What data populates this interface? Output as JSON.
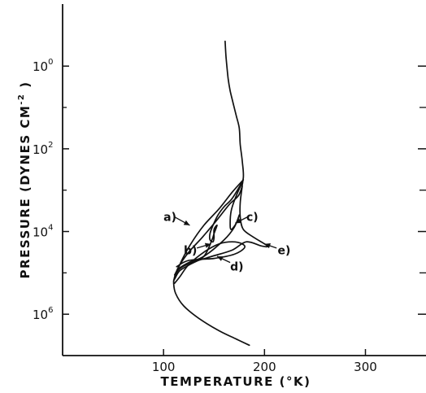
{
  "chart_data": {
    "type": "line",
    "xlabel": "TEMPERATURE (°K)",
    "ylabel_main": "PRESSURE (DYNES CM",
    "ylabel_sup": "-2",
    "ylabel_tail": " )",
    "xlim": [
      0,
      360
    ],
    "ylim_log10": [
      -1.5,
      7
    ],
    "y_scale": "log",
    "x_ticks": [
      {
        "value": 100,
        "label": "100"
      },
      {
        "value": 200,
        "label": "200"
      },
      {
        "value": 300,
        "label": "300"
      }
    ],
    "y_ticks": [
      {
        "exp": 0,
        "base": "10",
        "sup": "0"
      },
      {
        "exp": 2,
        "base": "10",
        "sup": "2"
      },
      {
        "exp": 4,
        "base": "10",
        "sup": "4"
      },
      {
        "exp": 6,
        "base": "10",
        "sup": "6"
      }
    ],
    "y_minor_ticks": [
      1,
      3,
      5
    ],
    "grid": false,
    "series": [
      {
        "name": "main",
        "points": [
          [
            161,
            -0.6
          ],
          [
            162,
            -0.2
          ],
          [
            164,
            0.3
          ],
          [
            166,
            0.6
          ],
          [
            169,
            0.9
          ],
          [
            172,
            1.2
          ],
          [
            175,
            1.5
          ],
          [
            176,
            1.9
          ],
          [
            178,
            2.3
          ],
          [
            179,
            2.7
          ],
          [
            175,
            3.1
          ],
          [
            165,
            3.35
          ],
          [
            152,
            3.75
          ],
          [
            138,
            4.15
          ],
          [
            125,
            4.5
          ],
          [
            115,
            4.85
          ],
          [
            111,
            5.1
          ],
          [
            110,
            5.25
          ],
          [
            112,
            5.5
          ],
          [
            120,
            5.8
          ],
          [
            135,
            6.1
          ],
          [
            155,
            6.4
          ],
          [
            172,
            6.6
          ],
          [
            185,
            6.75
          ]
        ]
      },
      {
        "name": "a)",
        "points": [
          [
            179,
            2.75
          ],
          [
            168,
            3.05
          ],
          [
            155,
            3.45
          ],
          [
            140,
            3.85
          ],
          [
            127,
            4.3
          ],
          [
            118,
            4.7
          ],
          [
            112,
            5.05
          ],
          [
            110,
            5.2
          ]
        ]
      },
      {
        "name": "b)",
        "points": [
          [
            178,
            2.8
          ],
          [
            168,
            3.2
          ],
          [
            160,
            3.4
          ],
          [
            154,
            3.6
          ],
          [
            149,
            3.85
          ],
          [
            146,
            4.05
          ],
          [
            146,
            4.2
          ],
          [
            149,
            4.25
          ],
          [
            150,
            4.15
          ],
          [
            150,
            3.95
          ],
          [
            153,
            3.85
          ],
          [
            150,
            4.05
          ],
          [
            148,
            4.2
          ],
          [
            140,
            4.6
          ],
          [
            126,
            4.8
          ],
          [
            116,
            4.95
          ],
          [
            111,
            5.15
          ]
        ]
      },
      {
        "name": "c)",
        "points": [
          [
            178,
            2.8
          ],
          [
            171,
            3.2
          ],
          [
            167,
            3.5
          ],
          [
            166,
            3.8
          ],
          [
            167,
            3.95
          ],
          [
            172,
            3.8
          ],
          [
            175,
            3.6
          ],
          [
            170,
            3.9
          ],
          [
            160,
            4.2
          ],
          [
            140,
            4.6
          ],
          [
            125,
            4.75
          ],
          [
            115,
            4.9
          ],
          [
            111,
            5.05
          ]
        ]
      },
      {
        "name": "d)",
        "points": [
          [
            111,
            5.25
          ],
          [
            116,
            5.1
          ],
          [
            125,
            4.8
          ],
          [
            140,
            4.5
          ],
          [
            155,
            4.3
          ],
          [
            168,
            4.25
          ],
          [
            178,
            4.3
          ],
          [
            180,
            4.4
          ],
          [
            170,
            4.55
          ],
          [
            150,
            4.65
          ],
          [
            125,
            4.7
          ],
          [
            113,
            4.85
          ]
        ]
      },
      {
        "name": "e)",
        "points": [
          [
            178,
            2.9
          ],
          [
            176,
            3.3
          ],
          [
            176,
            3.65
          ],
          [
            179,
            3.95
          ],
          [
            190,
            4.15
          ],
          [
            203,
            4.35
          ],
          [
            197,
            4.35
          ],
          [
            182,
            4.25
          ],
          [
            168,
            4.45
          ],
          [
            148,
            4.6
          ],
          [
            128,
            4.75
          ],
          [
            116,
            4.9
          ],
          [
            111,
            5.1
          ]
        ]
      }
    ],
    "annotations": [
      {
        "label": "a)",
        "text_at": [
          100,
          3.65
        ],
        "arrow_from": [
          111,
          3.65
        ],
        "arrow_to": [
          126,
          3.85
        ]
      },
      {
        "label": "b)",
        "text_at": [
          120,
          4.45
        ],
        "arrow_from": [
          133,
          4.4
        ],
        "arrow_to": [
          147,
          4.3
        ]
      },
      {
        "label": "c)",
        "text_at": [
          182,
          3.65
        ],
        "arrow_from": [
          183,
          3.65
        ],
        "arrow_to": [
          171,
          3.8
        ]
      },
      {
        "label": "d)",
        "text_at": [
          166,
          4.85
        ],
        "arrow_from": [
          166,
          4.75
        ],
        "arrow_to": [
          153,
          4.6
        ]
      },
      {
        "label": "e)",
        "text_at": [
          213,
          4.45
        ],
        "arrow_from": [
          212,
          4.4
        ],
        "arrow_to": [
          200,
          4.3
        ]
      }
    ]
  }
}
